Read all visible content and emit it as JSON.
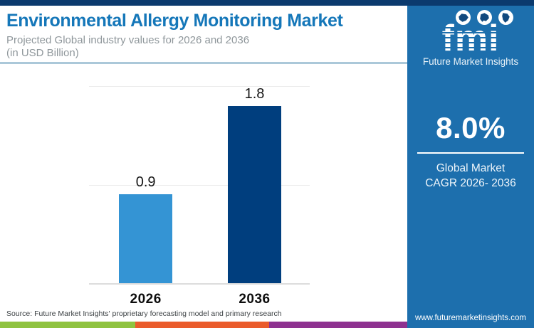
{
  "header": {
    "title": "Environmental Allergy Monitoring Market",
    "subtitle_line1": "Projected Global industry values for 2026 and 2036",
    "subtitle_line2": "(in USD Billion)"
  },
  "sidebar": {
    "logo": {
      "text": "fmi",
      "caption": "Future Market Insights",
      "globe_icons": [
        "north-america-globe-icon",
        "asia-globe-icon",
        "south-america-globe-icon"
      ]
    },
    "cagr_value": "8.0%",
    "cagr_label_line1": "Global Market",
    "cagr_label_line2": "CAGR 2026- 2036",
    "website": "www.futuremarketinsights.com"
  },
  "chart_data": {
    "type": "bar",
    "categories": [
      "2026",
      "2036"
    ],
    "values": [
      0.9,
      1.8
    ],
    "value_labels": [
      "0.9",
      "1.8"
    ],
    "bar_colors": [
      "#3494d4",
      "#003e7e"
    ],
    "title": "Environmental Allergy Monitoring Market",
    "subtitle": "Projected Global industry values for 2026 and 2036 (in USD Billion)",
    "xlabel": "",
    "ylabel": "USD Billion",
    "ylim": [
      0,
      2.0
    ],
    "gridline_values": [
      1.0,
      2.0
    ],
    "grid": "on",
    "legend": "none"
  },
  "footer": {
    "source": "Source: Future Market Insights' proprietary forecasting model and primary research",
    "strip_colors": [
      "#8fc340",
      "#ea5b2b",
      "#8e3190"
    ]
  },
  "colors": {
    "top_accent": "#0b3a6e",
    "sidebar_blue": "#1d6fad",
    "title_blue": "#1577b9",
    "subtitle_gray": "#8f979b",
    "bar_light": "#3494d4",
    "bar_dark": "#003e7e"
  }
}
